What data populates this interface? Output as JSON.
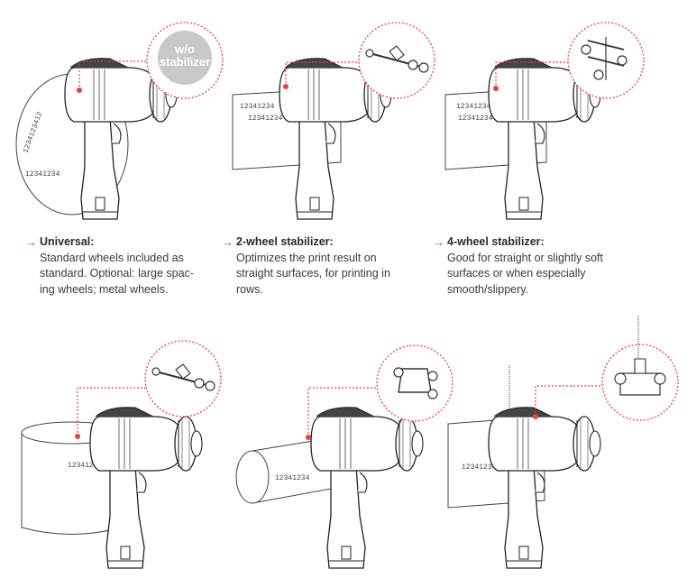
{
  "badge": {
    "line1": "w/o",
    "line2": "stabilizer"
  },
  "print_text": "12341234",
  "captions": [
    {
      "title": "Universal:",
      "desc": "Standard wheels included as\nstandard. Optional: large spac-\ning wheels; metal wheels."
    },
    {
      "title": "2-wheel stabilizer:",
      "desc": "Optimizes the print result on\nstraight surfaces, for printing in\nrows."
    },
    {
      "title": "4-wheel stabilizer:",
      "desc": "Good for straight or slightly soft\nsurfaces or when especially\nsmooth/slippery."
    }
  ],
  "colors": {
    "accent": "#e8423b",
    "badge": "#c8c8c8",
    "line": "#333333"
  }
}
